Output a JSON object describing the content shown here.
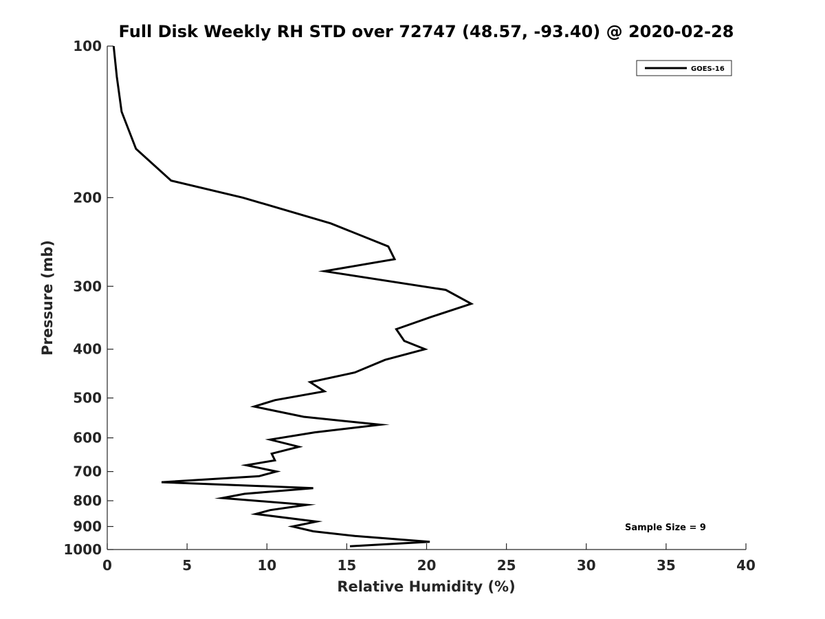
{
  "chart_data": {
    "type": "line",
    "title": "Full Disk Weekly RH STD over 72747 (48.57, -93.40) @ 2020-02-28",
    "xlabel": "Relative Humidity (%)",
    "ylabel": "Pressure (mb)",
    "xlim": [
      0,
      40
    ],
    "ylim": [
      100,
      1000
    ],
    "yscale": "log",
    "reverse_y": true,
    "xticks": [
      0,
      5,
      10,
      15,
      20,
      25,
      30,
      35,
      40
    ],
    "yticks": [
      100,
      200,
      300,
      400,
      500,
      600,
      700,
      800,
      900,
      1000
    ],
    "grid": false,
    "legend_position": "top-right",
    "annotation": "Sample Size = 9",
    "line_color": "#000000",
    "series": [
      {
        "name": "GOES-16",
        "x": [
          0.4,
          0.6,
          0.9,
          1.8,
          4.0,
          8.5,
          14.0,
          17.6,
          18.0,
          13.6,
          21.2,
          22.8,
          20.3,
          18.1,
          18.6,
          19.9,
          17.4,
          15.5,
          12.7,
          13.6,
          10.5,
          9.2,
          12.3,
          17.1,
          13.0,
          10.2,
          12.0,
          10.3,
          10.5,
          8.7,
          10.6,
          9.5,
          3.4,
          12.9,
          8.6,
          7.2,
          12.5,
          10.2,
          9.3,
          13.1,
          11.6,
          12.9,
          15.5,
          20.2,
          15.2
        ],
        "y": [
          100,
          115,
          135,
          160,
          185,
          200,
          225,
          250,
          265,
          280,
          305,
          325,
          345,
          365,
          385,
          400,
          420,
          445,
          465,
          485,
          505,
          520,
          545,
          565,
          585,
          605,
          625,
          645,
          665,
          680,
          700,
          715,
          735,
          755,
          775,
          790,
          815,
          835,
          850,
          880,
          900,
          920,
          940,
          965,
          985
        ]
      }
    ]
  }
}
